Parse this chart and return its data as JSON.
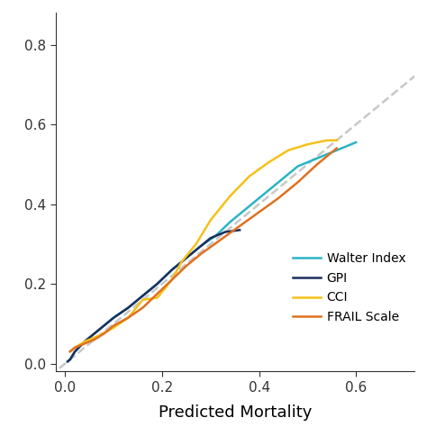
{
  "title": "",
  "xlabel": "Predicted Mortality",
  "ylabel": "",
  "xlim": [
    -0.02,
    0.72
  ],
  "ylim": [
    -0.02,
    0.88
  ],
  "xticks": [
    0.0,
    0.2,
    0.4,
    0.6
  ],
  "yticks": [
    0.0,
    0.2,
    0.4,
    0.6,
    0.8
  ],
  "diagonal": {
    "x": [
      -0.05,
      0.85
    ],
    "y": [
      -0.05,
      0.85
    ],
    "color": "#c8c8c8",
    "linestyle": "dashed",
    "linewidth": 1.8
  },
  "series": [
    {
      "label": "Walter Index",
      "color": "#29b4c6",
      "linewidth": 1.8,
      "x": [
        0.005,
        0.01,
        0.02,
        0.04,
        0.06,
        0.08,
        0.1,
        0.13,
        0.16,
        0.19,
        0.22,
        0.25,
        0.28,
        0.31,
        0.34,
        0.37,
        0.4,
        0.44,
        0.48,
        0.52,
        0.56,
        0.6
      ],
      "y": [
        0.005,
        0.01,
        0.03,
        0.055,
        0.075,
        0.095,
        0.115,
        0.14,
        0.17,
        0.2,
        0.235,
        0.265,
        0.295,
        0.32,
        0.355,
        0.385,
        0.415,
        0.455,
        0.495,
        0.515,
        0.535,
        0.555
      ]
    },
    {
      "label": "GPI",
      "color": "#1b2e5e",
      "linewidth": 1.8,
      "x": [
        0.005,
        0.01,
        0.02,
        0.04,
        0.06,
        0.08,
        0.1,
        0.13,
        0.16,
        0.19,
        0.22,
        0.25,
        0.28,
        0.3,
        0.33,
        0.36
      ],
      "y": [
        0.005,
        0.01,
        0.03,
        0.055,
        0.075,
        0.095,
        0.115,
        0.14,
        0.17,
        0.2,
        0.235,
        0.265,
        0.295,
        0.315,
        0.33,
        0.335
      ]
    },
    {
      "label": "CCI",
      "color": "#f5c118",
      "linewidth": 1.8,
      "x": [
        0.01,
        0.02,
        0.04,
        0.07,
        0.1,
        0.13,
        0.16,
        0.19,
        0.22,
        0.24,
        0.27,
        0.3,
        0.34,
        0.38,
        0.42,
        0.46,
        0.5,
        0.54,
        0.56
      ],
      "y": [
        0.03,
        0.04,
        0.055,
        0.07,
        0.09,
        0.115,
        0.16,
        0.165,
        0.21,
        0.255,
        0.3,
        0.36,
        0.42,
        0.47,
        0.505,
        0.535,
        0.55,
        0.56,
        0.56
      ]
    },
    {
      "label": "FRAIL Scale",
      "color": "#e07020",
      "linewidth": 1.8,
      "x": [
        0.01,
        0.02,
        0.04,
        0.06,
        0.08,
        0.1,
        0.13,
        0.16,
        0.19,
        0.22,
        0.25,
        0.28,
        0.32,
        0.36,
        0.4,
        0.44,
        0.48,
        0.52,
        0.56
      ],
      "y": [
        0.03,
        0.04,
        0.05,
        0.06,
        0.075,
        0.095,
        0.115,
        0.14,
        0.175,
        0.21,
        0.245,
        0.275,
        0.31,
        0.345,
        0.38,
        0.415,
        0.455,
        0.5,
        0.54
      ]
    }
  ],
  "background_color": "#ffffff",
  "tick_fontsize": 11,
  "label_fontsize": 13,
  "spine_color": "#333333"
}
